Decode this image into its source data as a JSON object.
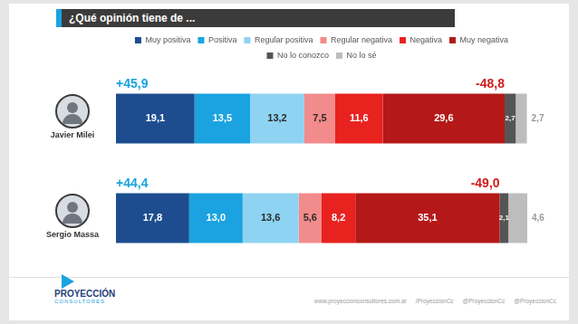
{
  "chart_data": {
    "type": "bar",
    "title": "¿Qué opinión tiene de ...",
    "orientation": "horizontal",
    "stacked": true,
    "data_labels": true,
    "legend": "top",
    "grid": false,
    "tick_labels": false,
    "categories": [
      "Javier Milei",
      "Sergio Massa"
    ],
    "xlim": [
      0,
      100
    ],
    "xticks": [
      0,
      100
    ],
    "series": [
      {
        "name": "Muy positiva",
        "color": "#1d4d8f",
        "values": [
          19.1,
          17.8
        ],
        "value_labels": [
          "19,1",
          "17,8"
        ]
      },
      {
        "name": "Positiva",
        "color": "#1aa3e0",
        "values": [
          13.5,
          13.0
        ],
        "value_labels": [
          "13,5",
          "13,0"
        ]
      },
      {
        "name": "Regular positiva",
        "color": "#8fd3f2",
        "values": [
          13.2,
          13.6
        ],
        "value_labels": [
          "13,2",
          "13,6"
        ]
      },
      {
        "name": "Regular negativa",
        "color": "#f28b8b",
        "values": [
          7.5,
          5.6
        ],
        "value_labels": [
          "7,5",
          "5,6"
        ]
      },
      {
        "name": "Negativa",
        "color": "#e8221f",
        "values": [
          11.6,
          8.2
        ],
        "value_labels": [
          "11,6",
          "8,2"
        ]
      },
      {
        "name": "Muy negativa",
        "color": "#b51818",
        "values": [
          29.6,
          35.1
        ],
        "value_labels": [
          "29,6",
          "35,1"
        ]
      },
      {
        "name": "No lo conozco",
        "color": "#555555",
        "values": [
          2.7,
          2.1
        ],
        "value_labels": [
          "2,7",
          "2,1"
        ]
      },
      {
        "name": "No lo sé",
        "color": "#bdbdbd",
        "values": [
          2.7,
          4.6
        ],
        "value_labels": [
          "2,7",
          "4,6"
        ]
      }
    ],
    "annotations": [
      {
        "category": "Javier Milei",
        "positive": "+45,9",
        "negative": "-48,8"
      },
      {
        "category": "Sergio Massa",
        "positive": "+44,4",
        "negative": "-49,0"
      }
    ]
  },
  "footer": {
    "logo": "PROYECCIÓN",
    "logo_sub": "CONSULTORES",
    "links": [
      "www.proyeccionconsultores.com.ar",
      "/ProyeccionCc",
      "@ProyeccionCc",
      "@ProyeccionCc"
    ]
  }
}
